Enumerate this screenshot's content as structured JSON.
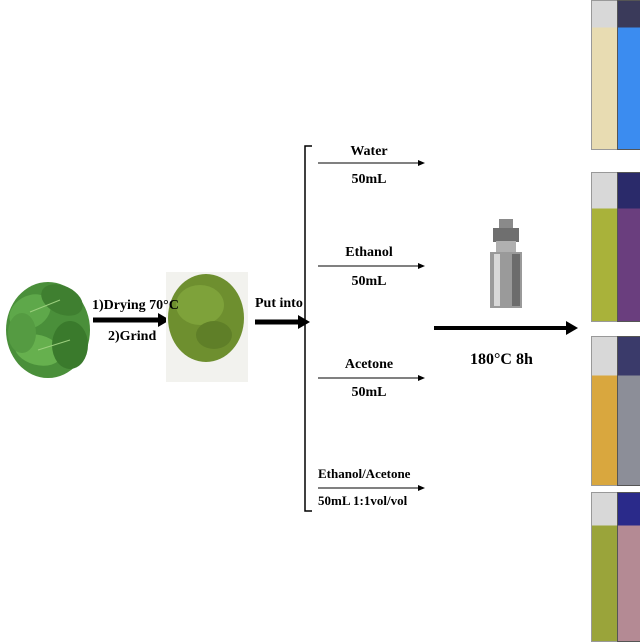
{
  "steps": {
    "step1": "1)Drying  70°C",
    "step2": "2)Grind",
    "put_into": "Put into",
    "condition": "180°C 8h"
  },
  "solvents": [
    {
      "name": "Water",
      "volume": "50mL"
    },
    {
      "name": "Ethanol",
      "volume": "50mL"
    },
    {
      "name": "Acetone",
      "volume": "50mL"
    },
    {
      "name": "Ethanol/Acetone",
      "volume": "50mL  1:1vol/vol"
    }
  ],
  "colors": {
    "leaf": "#4a8f3a",
    "powder": "#6e8f2f",
    "water_daylight": "#e8dcb2",
    "water_uv": "#3b8cf0",
    "ethanol_daylight": "#a9b23a",
    "ethanol_uv": "#6a3e7e",
    "acetone_daylight": "#d9a73e",
    "acetone_uv": "#8c8e98",
    "mixed_daylight": "#9aa43a",
    "mixed_uv": "#b48a94"
  }
}
